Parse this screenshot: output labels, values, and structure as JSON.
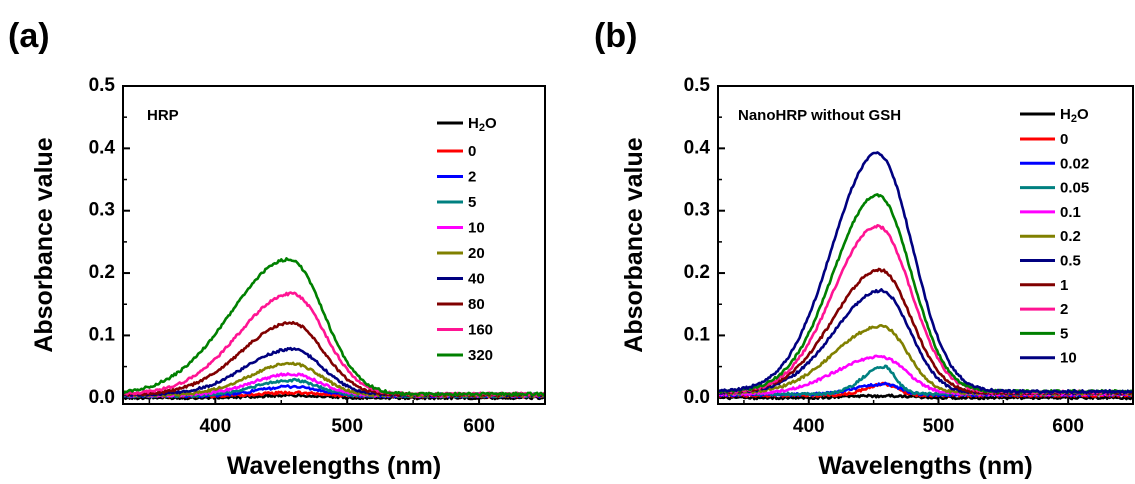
{
  "chart_data": [
    {
      "panel_label": "(a)",
      "type": "line",
      "annotation": "HRP",
      "xlabel": "Wavelengths (nm)",
      "ylabel": "Absorbance value",
      "xlim": [
        330,
        650
      ],
      "ylim": [
        -0.01,
        0.5
      ],
      "xticks": [
        "400",
        "500",
        "600"
      ],
      "yticks": [
        "0.0",
        "0.1",
        "0.2",
        "0.3",
        "0.4",
        "0.5"
      ],
      "legend_position": "right",
      "series": [
        {
          "name": "H2O",
          "color": "#000000",
          "peak_x": 458,
          "peak_y": 0.004,
          "sigma_l": 25,
          "sigma_r": 20,
          "baseline": 0.0
        },
        {
          "name": "0",
          "color": "#ff0000",
          "peak_x": 458,
          "peak_y": 0.008,
          "sigma_l": 25,
          "sigma_r": 20,
          "baseline": 0.003
        },
        {
          "name": "2",
          "color": "#0000ff",
          "peak_x": 458,
          "peak_y": 0.018,
          "sigma_l": 25,
          "sigma_r": 20,
          "baseline": 0.003
        },
        {
          "name": "5",
          "color": "#008080",
          "peak_x": 458,
          "peak_y": 0.028,
          "sigma_l": 28,
          "sigma_r": 20,
          "baseline": 0.003
        },
        {
          "name": "10",
          "color": "#ff00ff",
          "peak_x": 458,
          "peak_y": 0.038,
          "sigma_l": 30,
          "sigma_r": 21,
          "baseline": 0.004
        },
        {
          "name": "20",
          "color": "#808000",
          "peak_x": 458,
          "peak_y": 0.055,
          "sigma_l": 32,
          "sigma_r": 22,
          "baseline": 0.004
        },
        {
          "name": "40",
          "color": "#000080",
          "peak_x": 458,
          "peak_y": 0.078,
          "sigma_l": 35,
          "sigma_r": 23,
          "baseline": 0.005
        },
        {
          "name": "80",
          "color": "#800000",
          "peak_x": 458,
          "peak_y": 0.12,
          "sigma_l": 38,
          "sigma_r": 24,
          "baseline": 0.005
        },
        {
          "name": "160",
          "color": "#ff1493",
          "peak_x": 458,
          "peak_y": 0.167,
          "sigma_l": 40,
          "sigma_r": 25,
          "baseline": 0.006
        },
        {
          "name": "320",
          "color": "#008000",
          "peak_x": 456,
          "peak_y": 0.222,
          "sigma_l": 44,
          "sigma_r": 26,
          "baseline": 0.006
        }
      ]
    },
    {
      "panel_label": "(b)",
      "type": "line",
      "annotation": "NanoHRP without GSH",
      "xlabel": "Wavelengths (nm)",
      "ylabel": "Absorbance value",
      "xlim": [
        330,
        650
      ],
      "ylim": [
        -0.01,
        0.5
      ],
      "xticks": [
        "400",
        "500",
        "600"
      ],
      "yticks": [
        "0.0",
        "0.1",
        "0.2",
        "0.3",
        "0.4",
        "0.5"
      ],
      "legend_position": "right",
      "series": [
        {
          "name": "H2O",
          "color": "#000000",
          "peak_x": 458,
          "peak_y": 0.003,
          "sigma_l": 25,
          "sigma_r": 20,
          "baseline": 0.0
        },
        {
          "name": "0",
          "color": "#ff0000",
          "peak_x": 458,
          "peak_y": 0.022,
          "sigma_l": 14,
          "sigma_r": 10,
          "baseline": 0.004
        },
        {
          "name": "0.02",
          "color": "#0000ff",
          "peak_x": 458,
          "peak_y": 0.022,
          "sigma_l": 22,
          "sigma_r": 12,
          "baseline": 0.005
        },
        {
          "name": "0.05",
          "color": "#008080",
          "peak_x": 458,
          "peak_y": 0.05,
          "sigma_l": 16,
          "sigma_r": 9,
          "baseline": 0.006
        },
        {
          "name": "0.1",
          "color": "#ff00ff",
          "peak_x": 455,
          "peak_y": 0.066,
          "sigma_l": 34,
          "sigma_r": 20,
          "baseline": 0.006
        },
        {
          "name": "0.2",
          "color": "#808000",
          "peak_x": 456,
          "peak_y": 0.115,
          "sigma_l": 36,
          "sigma_r": 20,
          "baseline": 0.007
        },
        {
          "name": "0.5",
          "color": "#000080",
          "peak_x": 456,
          "peak_y": 0.172,
          "sigma_l": 36,
          "sigma_r": 22,
          "baseline": 0.008
        },
        {
          "name": "1",
          "color": "#800000",
          "peak_x": 455,
          "peak_y": 0.205,
          "sigma_l": 36,
          "sigma_r": 24,
          "baseline": 0.008
        },
        {
          "name": "2",
          "color": "#ff1493",
          "peak_x": 453,
          "peak_y": 0.275,
          "sigma_l": 34,
          "sigma_r": 26,
          "baseline": 0.009
        },
        {
          "name": "5",
          "color": "#008000",
          "peak_x": 453,
          "peak_y": 0.325,
          "sigma_l": 34,
          "sigma_r": 26,
          "baseline": 0.01
        },
        {
          "name": "10",
          "color": "#000080",
          "peak_x": 453,
          "peak_y": 0.392,
          "sigma_l": 35,
          "sigma_r": 27,
          "baseline": 0.01
        }
      ]
    }
  ]
}
